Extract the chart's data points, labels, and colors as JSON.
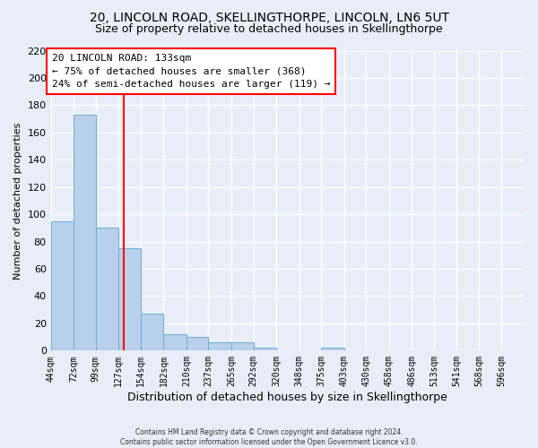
{
  "title": "20, LINCOLN ROAD, SKELLINGTHORPE, LINCOLN, LN6 5UT",
  "subtitle": "Size of property relative to detached houses in Skellingthorpe",
  "bar_values": [
    95,
    173,
    90,
    75,
    27,
    12,
    10,
    6,
    6,
    2,
    0,
    0,
    2,
    0,
    0,
    0,
    0,
    0,
    0,
    0,
    0
  ],
  "bin_labels": [
    "44sqm",
    "72sqm",
    "99sqm",
    "127sqm",
    "154sqm",
    "182sqm",
    "210sqm",
    "237sqm",
    "265sqm",
    "292sqm",
    "320sqm",
    "348sqm",
    "375sqm",
    "403sqm",
    "430sqm",
    "458sqm",
    "486sqm",
    "513sqm",
    "541sqm",
    "568sqm",
    "596sqm"
  ],
  "bin_edges": [
    44,
    72,
    99,
    127,
    154,
    182,
    210,
    237,
    265,
    292,
    320,
    348,
    375,
    403,
    430,
    458,
    486,
    513,
    541,
    568,
    596,
    624
  ],
  "ylabel": "Number of detached properties",
  "xlabel": "Distribution of detached houses by size in Skellingthorpe",
  "ylim": [
    0,
    220
  ],
  "yticks": [
    0,
    20,
    40,
    60,
    80,
    100,
    120,
    140,
    160,
    180,
    200,
    220
  ],
  "bar_color": "#b8d0eb",
  "bar_edgecolor": "#6baed6",
  "vline_x": 133,
  "vline_color": "red",
  "annotation_title": "20 LINCOLN ROAD: 133sqm",
  "annotation_line1": "← 75% of detached houses are smaller (368)",
  "annotation_line2": "24% of semi-detached houses are larger (119) →",
  "annotation_box_edgecolor": "red",
  "annotation_box_facecolor": "white",
  "footer1": "Contains HM Land Registry data © Crown copyright and database right 2024.",
  "footer2": "Contains public sector information licensed under the Open Government Licence v3.0.",
  "bg_color": "#e8eef8",
  "grid_color": "white",
  "title_fontsize": 10,
  "subtitle_fontsize": 9
}
